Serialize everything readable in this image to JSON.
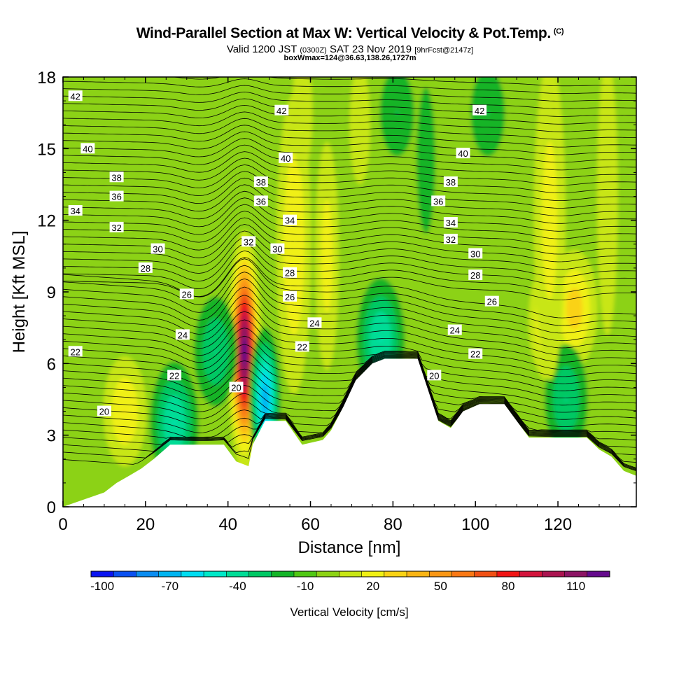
{
  "titles": {
    "main": "Wind-Parallel Section at Max W: Vertical Velocity & Pot.Temp.",
    "copyright": "(C)",
    "valid_prefix": "Valid 1200 JST",
    "valid_utc": "(0300Z)",
    "valid_date": "SAT 23 Nov 2019",
    "forecast": "[9hrFcst@2147z]",
    "box": "boxWmax=124@36.63,138.26,1727m"
  },
  "colors": {
    "terrain": "#ffffff",
    "contour_line": "#000000",
    "background": "#ffffff"
  },
  "chart_data": {
    "type": "heatmap",
    "xlabel": "Distance [nm]",
    "ylabel": "Height [Kft MSL]",
    "xlim": [
      0,
      139
    ],
    "ylim": [
      0,
      18
    ],
    "xticks": [
      "0",
      "20",
      "40",
      "60",
      "80",
      "100",
      "120"
    ],
    "yticks": [
      "0",
      "3",
      "6",
      "9",
      "12",
      "15",
      "18"
    ],
    "grid": false,
    "colorbar": {
      "label": "Vertical Velocity [cm/s]",
      "tick_labels": [
        "-100",
        "-70",
        "-40",
        "-10",
        "20",
        "50",
        "80",
        "110"
      ],
      "levels": [
        -100,
        -90,
        -80,
        -70,
        -60,
        -50,
        -40,
        -30,
        -20,
        -10,
        0,
        10,
        20,
        30,
        40,
        50,
        60,
        70,
        80,
        90,
        100,
        110,
        120
      ],
      "colors": [
        "#0a14f0",
        "#0a50f0",
        "#0a8cf0",
        "#00b4f0",
        "#00dcf0",
        "#00e8c8",
        "#00dc96",
        "#00c864",
        "#14b428",
        "#50c814",
        "#8cd214",
        "#c8e614",
        "#f0f014",
        "#fad214",
        "#fab414",
        "#fa9614",
        "#fa7814",
        "#f05014",
        "#f01414",
        "#d2143c",
        "#aa1450",
        "#8c1464",
        "#640a8c"
      ]
    },
    "terrain_kft": {
      "x": [
        0,
        10,
        13,
        16,
        19,
        22,
        26,
        39,
        42,
        45,
        46,
        49,
        54,
        58,
        63,
        65,
        68,
        71,
        75,
        78,
        81,
        86,
        91,
        94,
        97,
        101,
        107,
        110,
        113,
        127,
        130,
        133,
        136,
        139
      ],
      "y": [
        0,
        0.6,
        1.0,
        1.3,
        1.6,
        2.0,
        2.6,
        2.6,
        1.9,
        1.7,
        2.6,
        3.6,
        3.6,
        2.6,
        2.8,
        3.2,
        4.2,
        5.3,
        6.0,
        6.2,
        6.2,
        6.2,
        3.6,
        3.3,
        4.0,
        4.3,
        4.3,
        3.6,
        2.9,
        2.9,
        2.4,
        2.1,
        1.5,
        1.3
      ]
    },
    "vertical_velocity_features": [
      {
        "x": 44,
        "y": 6.5,
        "value": 124,
        "note": "updraft core"
      },
      {
        "x": 119,
        "y": 7.8,
        "value": 45
      },
      {
        "x": 124,
        "y": 8.3,
        "value": 35
      },
      {
        "x": 15,
        "y": 4.0,
        "value": 30
      },
      {
        "x": 49,
        "y": 4.5,
        "value": -65
      },
      {
        "x": 77,
        "y": 7.0,
        "value": -40
      },
      {
        "x": 27,
        "y": 3.5,
        "value": -40
      },
      {
        "x": 37,
        "y": 6.5,
        "value": -30
      },
      {
        "x": 122,
        "y": 4.5,
        "value": -30
      },
      {
        "x": 81,
        "y": 16.5,
        "value": -20
      },
      {
        "x": 103,
        "y": 16.5,
        "value": -20
      }
    ],
    "contour_labels": [
      {
        "x": 3,
        "y": 17.2,
        "text": "42"
      },
      {
        "x": 53,
        "y": 16.6,
        "text": "42"
      },
      {
        "x": 101,
        "y": 16.6,
        "text": "42"
      },
      {
        "x": 6,
        "y": 15.0,
        "text": "40"
      },
      {
        "x": 54,
        "y": 14.6,
        "text": "40"
      },
      {
        "x": 97,
        "y": 14.8,
        "text": "40"
      },
      {
        "x": 13,
        "y": 13.8,
        "text": "38"
      },
      {
        "x": 48,
        "y": 13.6,
        "text": "38"
      },
      {
        "x": 94,
        "y": 13.6,
        "text": "38"
      },
      {
        "x": 13,
        "y": 13.0,
        "text": "36"
      },
      {
        "x": 48,
        "y": 12.8,
        "text": "36"
      },
      {
        "x": 91,
        "y": 12.8,
        "text": "36"
      },
      {
        "x": 3,
        "y": 12.4,
        "text": "34"
      },
      {
        "x": 55,
        "y": 12.0,
        "text": "34"
      },
      {
        "x": 94,
        "y": 11.9,
        "text": "34"
      },
      {
        "x": 13,
        "y": 11.7,
        "text": "32"
      },
      {
        "x": 45,
        "y": 11.1,
        "text": "32"
      },
      {
        "x": 94,
        "y": 11.2,
        "text": "32"
      },
      {
        "x": 23,
        "y": 10.8,
        "text": "30"
      },
      {
        "x": 52,
        "y": 10.8,
        "text": "30"
      },
      {
        "x": 100,
        "y": 10.6,
        "text": "30"
      },
      {
        "x": 20,
        "y": 10.0,
        "text": "28"
      },
      {
        "x": 55,
        "y": 9.8,
        "text": "28"
      },
      {
        "x": 100,
        "y": 9.7,
        "text": "28"
      },
      {
        "x": 30,
        "y": 8.9,
        "text": "26"
      },
      {
        "x": 55,
        "y": 8.8,
        "text": "26"
      },
      {
        "x": 104,
        "y": 8.6,
        "text": "26"
      },
      {
        "x": 29,
        "y": 7.2,
        "text": "24"
      },
      {
        "x": 61,
        "y": 7.7,
        "text": "24"
      },
      {
        "x": 95,
        "y": 7.4,
        "text": "24"
      },
      {
        "x": 3,
        "y": 6.5,
        "text": "22"
      },
      {
        "x": 27,
        "y": 5.5,
        "text": "22"
      },
      {
        "x": 58,
        "y": 6.7,
        "text": "22"
      },
      {
        "x": 100,
        "y": 6.4,
        "text": "22"
      },
      {
        "x": 10,
        "y": 4.0,
        "text": "20"
      },
      {
        "x": 42,
        "y": 5.0,
        "text": "20"
      },
      {
        "x": 90,
        "y": 5.5,
        "text": "20"
      }
    ]
  }
}
